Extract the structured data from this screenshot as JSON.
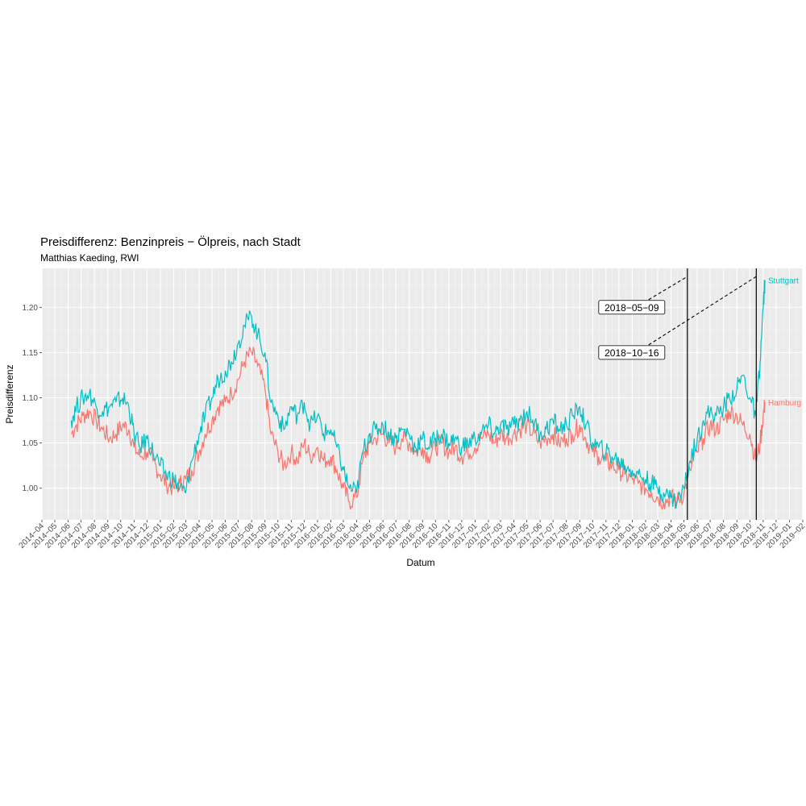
{
  "chart_data": {
    "type": "line",
    "title": "Preisdifferenz: Benzinpreis − Ölpreis,  nach Stadt",
    "subtitle": "Matthias Kaeding, RWI",
    "xlabel": "Datum",
    "ylabel": "Preisdifferenz",
    "xlim": [
      "2014-04-01",
      "2019-02-01"
    ],
    "ylim": [
      0.965,
      1.243
    ],
    "grid": true,
    "yticks": [
      1.0,
      1.05,
      1.1,
      1.15,
      1.2
    ],
    "ytick_labels": [
      "1.00",
      "1.05",
      "1.10",
      "1.15",
      "1.20"
    ],
    "xtick_labels": [
      "2014−04",
      "2014−05",
      "2014−06",
      "2014−07",
      "2014−08",
      "2014−09",
      "2014−10",
      "2014−11",
      "2014−12",
      "2015−01",
      "2015−02",
      "2015−03",
      "2015−04",
      "2015−05",
      "2015−06",
      "2015−07",
      "2015−08",
      "2015−09",
      "2015−10",
      "2015−11",
      "2015−12",
      "2016−01",
      "2016−02",
      "2016−03",
      "2016−04",
      "2016−05",
      "2016−06",
      "2016−07",
      "2016−08",
      "2016−09",
      "2016−10",
      "2016−11",
      "2016−12",
      "2017−01",
      "2017−02",
      "2017−03",
      "2017−04",
      "2017−05",
      "2017−06",
      "2017−07",
      "2017−08",
      "2017−09",
      "2017−10",
      "2017−11",
      "2017−12",
      "2018−01",
      "2018−02",
      "2018−03",
      "2018−04",
      "2018−05",
      "2018−06",
      "2018−07",
      "2018−08",
      "2018−09",
      "2018−10",
      "2018−11",
      "2018−12",
      "2019−01",
      "2019−02"
    ],
    "series": [
      {
        "name": "Hamburg",
        "color": "#F8766D",
        "x": [
          "2014-06-08",
          "2014-06-20",
          "2014-07-05",
          "2014-07-20",
          "2014-08-05",
          "2014-08-20",
          "2014-09-05",
          "2014-09-20",
          "2014-10-05",
          "2014-10-20",
          "2014-11-01",
          "2014-11-15",
          "2014-12-01",
          "2014-12-15",
          "2015-01-01",
          "2015-01-15",
          "2015-02-01",
          "2015-02-15",
          "2015-03-01",
          "2015-03-15",
          "2015-04-01",
          "2015-04-15",
          "2015-05-01",
          "2015-05-15",
          "2015-06-01",
          "2015-06-15",
          "2015-07-01",
          "2015-07-15",
          "2015-08-01",
          "2015-08-15",
          "2015-09-01",
          "2015-09-15",
          "2015-10-01",
          "2015-10-15",
          "2015-11-01",
          "2015-11-15",
          "2015-12-01",
          "2015-12-15",
          "2016-01-01",
          "2016-01-15",
          "2016-02-01",
          "2016-02-15",
          "2016-03-01",
          "2016-03-15",
          "2016-04-01",
          "2016-04-15",
          "2016-05-01",
          "2016-05-15",
          "2016-06-01",
          "2016-06-15",
          "2016-07-01",
          "2016-07-15",
          "2016-08-01",
          "2016-08-15",
          "2016-09-01",
          "2016-09-15",
          "2016-10-01",
          "2016-10-15",
          "2016-11-01",
          "2016-11-15",
          "2016-12-01",
          "2016-12-15",
          "2017-01-01",
          "2017-01-15",
          "2017-02-01",
          "2017-02-15",
          "2017-03-01",
          "2017-03-15",
          "2017-04-01",
          "2017-04-15",
          "2017-05-01",
          "2017-05-15",
          "2017-06-01",
          "2017-06-15",
          "2017-07-01",
          "2017-07-15",
          "2017-08-01",
          "2017-08-15",
          "2017-09-01",
          "2017-09-15",
          "2017-10-01",
          "2017-10-15",
          "2017-11-01",
          "2017-11-15",
          "2017-12-01",
          "2017-12-15",
          "2018-01-01",
          "2018-01-15",
          "2018-02-01",
          "2018-02-15",
          "2018-03-01",
          "2018-03-15",
          "2018-04-01",
          "2018-04-15",
          "2018-05-01",
          "2018-05-15",
          "2018-06-01",
          "2018-06-15",
          "2018-07-01",
          "2018-07-15",
          "2018-08-01",
          "2018-08-15",
          "2018-09-01",
          "2018-09-15",
          "2018-10-01",
          "2018-10-15",
          "2018-10-25",
          "2018-11-01",
          "2018-11-05"
        ],
        "y": [
          1.06,
          1.07,
          1.08,
          1.085,
          1.075,
          1.065,
          1.055,
          1.06,
          1.07,
          1.065,
          1.045,
          1.035,
          1.04,
          1.03,
          1.015,
          1.005,
          1.0,
          1.005,
          1.01,
          1.02,
          1.04,
          1.06,
          1.075,
          1.09,
          1.095,
          1.105,
          1.12,
          1.14,
          1.15,
          1.135,
          1.11,
          1.06,
          1.04,
          1.025,
          1.04,
          1.03,
          1.05,
          1.035,
          1.045,
          1.03,
          1.035,
          1.02,
          1.0,
          0.985,
          0.99,
          1.03,
          1.05,
          1.055,
          1.06,
          1.05,
          1.045,
          1.055,
          1.05,
          1.04,
          1.045,
          1.035,
          1.045,
          1.05,
          1.04,
          1.045,
          1.035,
          1.04,
          1.045,
          1.055,
          1.06,
          1.05,
          1.06,
          1.055,
          1.06,
          1.065,
          1.07,
          1.06,
          1.05,
          1.055,
          1.06,
          1.05,
          1.055,
          1.06,
          1.07,
          1.055,
          1.04,
          1.035,
          1.03,
          1.025,
          1.02,
          1.015,
          1.01,
          1.005,
          1.0,
          0.995,
          0.99,
          0.985,
          0.99,
          0.985,
          0.995,
          1.02,
          1.04,
          1.055,
          1.07,
          1.065,
          1.075,
          1.085,
          1.08,
          1.07,
          1.06,
          1.03,
          1.05,
          1.08,
          1.095
        ]
      },
      {
        "name": "Stuttgart",
        "color": "#00BFC4",
        "x": [
          "2014-06-08",
          "2014-06-20",
          "2014-07-05",
          "2014-07-20",
          "2014-08-05",
          "2014-08-20",
          "2014-09-05",
          "2014-09-20",
          "2014-10-05",
          "2014-10-20",
          "2014-11-01",
          "2014-11-15",
          "2014-12-01",
          "2014-12-15",
          "2015-01-01",
          "2015-01-15",
          "2015-02-01",
          "2015-02-15",
          "2015-03-01",
          "2015-03-15",
          "2015-04-01",
          "2015-04-15",
          "2015-05-01",
          "2015-05-15",
          "2015-06-01",
          "2015-06-15",
          "2015-07-01",
          "2015-07-15",
          "2015-08-01",
          "2015-08-15",
          "2015-09-01",
          "2015-09-15",
          "2015-10-01",
          "2015-10-15",
          "2015-11-01",
          "2015-11-15",
          "2015-12-01",
          "2015-12-15",
          "2016-01-01",
          "2016-01-15",
          "2016-02-01",
          "2016-02-15",
          "2016-03-01",
          "2016-03-15",
          "2016-04-01",
          "2016-04-15",
          "2016-05-01",
          "2016-05-15",
          "2016-06-01",
          "2016-06-15",
          "2016-07-01",
          "2016-07-15",
          "2016-08-01",
          "2016-08-15",
          "2016-09-01",
          "2016-09-15",
          "2016-10-01",
          "2016-10-15",
          "2016-11-01",
          "2016-11-15",
          "2016-12-01",
          "2016-12-15",
          "2017-01-01",
          "2017-01-15",
          "2017-02-01",
          "2017-02-15",
          "2017-03-01",
          "2017-03-15",
          "2017-04-01",
          "2017-04-15",
          "2017-05-01",
          "2017-05-15",
          "2017-06-01",
          "2017-06-15",
          "2017-07-01",
          "2017-07-15",
          "2017-08-01",
          "2017-08-15",
          "2017-09-01",
          "2017-09-15",
          "2017-10-01",
          "2017-10-15",
          "2017-11-01",
          "2017-11-15",
          "2017-12-01",
          "2017-12-15",
          "2018-01-01",
          "2018-01-15",
          "2018-02-01",
          "2018-02-15",
          "2018-03-01",
          "2018-03-15",
          "2018-04-01",
          "2018-04-15",
          "2018-05-01",
          "2018-05-15",
          "2018-06-01",
          "2018-06-15",
          "2018-07-01",
          "2018-07-15",
          "2018-08-01",
          "2018-08-15",
          "2018-09-01",
          "2018-09-15",
          "2018-10-01",
          "2018-10-15",
          "2018-10-25",
          "2018-11-01",
          "2018-11-05"
        ],
        "y": [
          1.075,
          1.09,
          1.1,
          1.105,
          1.09,
          1.085,
          1.09,
          1.095,
          1.1,
          1.09,
          1.06,
          1.045,
          1.055,
          1.04,
          1.025,
          1.015,
          1.01,
          1.0,
          0.995,
          1.03,
          1.06,
          1.08,
          1.1,
          1.12,
          1.13,
          1.14,
          1.16,
          1.18,
          1.19,
          1.17,
          1.15,
          1.095,
          1.08,
          1.065,
          1.09,
          1.08,
          1.095,
          1.07,
          1.08,
          1.06,
          1.065,
          1.045,
          1.02,
          1.0,
          0.995,
          1.04,
          1.06,
          1.065,
          1.07,
          1.06,
          1.055,
          1.065,
          1.06,
          1.045,
          1.055,
          1.045,
          1.055,
          1.06,
          1.05,
          1.055,
          1.045,
          1.05,
          1.055,
          1.06,
          1.07,
          1.06,
          1.07,
          1.065,
          1.07,
          1.075,
          1.085,
          1.075,
          1.06,
          1.065,
          1.075,
          1.065,
          1.07,
          1.08,
          1.09,
          1.07,
          1.05,
          1.045,
          1.04,
          1.035,
          1.03,
          1.025,
          1.02,
          1.015,
          1.01,
          1.005,
          1.0,
          0.995,
          0.99,
          0.985,
          1.0,
          1.03,
          1.055,
          1.075,
          1.085,
          1.08,
          1.09,
          1.1,
          1.11,
          1.125,
          1.1,
          1.08,
          1.14,
          1.2,
          1.23
        ]
      }
    ],
    "vlines": [
      "2018-05-09",
      "2018-10-16"
    ],
    "annotations": [
      {
        "label": "2018−05−09",
        "x": "2018-05-09",
        "y": 1.2
      },
      {
        "label": "2018−10−16",
        "x": "2018-10-16",
        "y": 1.15
      }
    ]
  }
}
